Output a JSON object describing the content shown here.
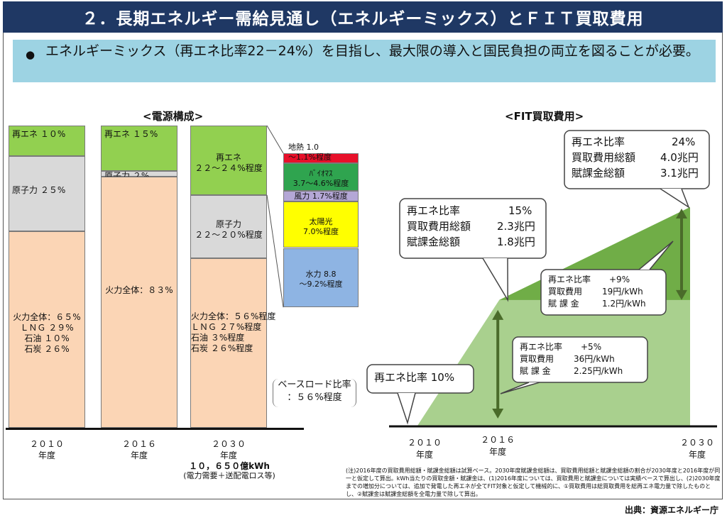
{
  "title": "２．長期エネルギー需給見通し（エネルギーミックス）とＦＩＴ買取費用",
  "banner": {
    "bullet": "●",
    "text": "エネルギーミックス（再エネ比率22－24%）を目指し、最大限の導入と国民負担の両立を図ることが必要。"
  },
  "left_section_title": "<電源構成>",
  "right_section_title": "<FIT買取費用>",
  "colors": {
    "renewable": "#92d050",
    "nuclear": "#d9d9d9",
    "thermal": "#fbd5b5",
    "geothermal": "#e8102a",
    "biomass": "#2fa44f",
    "wind": "#b4a7d6",
    "solar": "#ffff00",
    "hydro": "#8eb4e3",
    "fit_light": "#a9d08e",
    "fit_dark": "#70ad47",
    "arrow": "#4a6b2a",
    "title_bg": "#1f3864",
    "banner_bg": "#9dd3e3"
  },
  "chart_data": [
    {
      "type": "bar",
      "title": "<電源構成>",
      "categories": [
        "２０１０\n年度",
        "２０１６\n年度",
        "２０３０\n年度"
      ],
      "series": [
        {
          "name": "再エネ",
          "values": [
            10,
            15,
            23
          ]
        },
        {
          "name": "原子力",
          "values": [
            25,
            2,
            21
          ]
        },
        {
          "name": "火力全体",
          "values": [
            65,
            83,
            56
          ]
        }
      ],
      "bars": [
        {
          "year": "２０１０",
          "unit": "年度",
          "segments": [
            {
              "key": "renewable",
              "value": 10,
              "label": "再エネ １０%"
            },
            {
              "key": "nuclear",
              "value": 25,
              "label": "原子力 ２５%"
            },
            {
              "key": "thermal",
              "value": 65,
              "label": "火力全体：６５%\nＬＮＧ ２９%\n石油 １０%\n石炭 ２６%"
            }
          ]
        },
        {
          "year": "２０１６",
          "unit": "年度",
          "segments": [
            {
              "key": "renewable",
              "value": 15,
              "label": "再エネ １５%"
            },
            {
              "key": "nuclear",
              "value": 2,
              "label": "原子力 ２%"
            },
            {
              "key": "thermal",
              "value": 83,
              "label": "火力全体：８３%"
            }
          ]
        },
        {
          "year": "２０３０",
          "unit": "年度",
          "segments": [
            {
              "key": "renewable",
              "value": 23,
              "label": "再エネ\n２２～２４%程度"
            },
            {
              "key": "nuclear",
              "value": 21,
              "label": "原子力\n２２～２０%程度"
            },
            {
              "key": "thermal",
              "value": 56,
              "label": "火力全体：５６%程度\nＬＮＧ ２７%程度\n石油 ３%程度\n石炭 ２６%程度"
            }
          ]
        }
      ],
      "renewable_breakdown_2030": [
        {
          "key": "geothermal",
          "value": 1.05,
          "label": "地熱 1.0\n～1.1%程度"
        },
        {
          "key": "biomass",
          "value": 4.15,
          "label": "ﾊﾞｲｵﾏｽ\n3.7～4.6%程度"
        },
        {
          "key": "wind",
          "value": 1.7,
          "label": "風力 1.7%程度"
        },
        {
          "key": "solar",
          "value": 7.0,
          "label": "太陽光\n7.0%程度"
        },
        {
          "key": "hydro",
          "value": 9.0,
          "label": "水力 8.8\n～9.2%程度"
        }
      ],
      "demand_2030": "１０，６５０億kWh",
      "demand_note": "(電力需要＋送配電ロス等)",
      "baseload_note": "ベースロード比率\n：５６%程度"
    },
    {
      "type": "area",
      "title": "<FIT買取費用>",
      "x": [
        2010,
        2016,
        2030
      ],
      "x_labels": [
        {
          "year": 2010,
          "label": "２０１０",
          "unit": "年度"
        },
        {
          "year": 2016,
          "label": "２０１６",
          "unit": "年度"
        },
        {
          "year": 2030,
          "label": "２０３０",
          "unit": "年度"
        }
      ],
      "series": [
        {
          "name": "買取費用総額",
          "values": [
            0,
            2.3,
            4.0
          ]
        },
        {
          "name": "賦課金総額",
          "values": [
            0,
            1.8,
            3.1
          ]
        }
      ],
      "callouts": [
        {
          "id": "y2010",
          "lines": [
            "再エネ比率 10%"
          ]
        },
        {
          "id": "y2016",
          "lines": [
            "再エネ比率",
            "15%",
            "買取費用総額",
            "2.3兆円",
            "賦課金総額",
            "1.8兆円"
          ]
        },
        {
          "id": "y2030",
          "lines": [
            "再エネ比率",
            "24%",
            "買取費用総額",
            "4.0兆円",
            "賦課金総額",
            "3.1兆円"
          ]
        },
        {
          "id": "inc5",
          "lines": [
            "再エネ比率",
            "+5%",
            "買取費用",
            "36円/kWh",
            "賦 課 金",
            "2.25円/kWh"
          ]
        },
        {
          "id": "inc9",
          "lines": [
            "再エネ比率",
            "+9%",
            "買取費用",
            "19円/kWh",
            "賦 課 金",
            "1.2円/kWh"
          ]
        }
      ]
    }
  ],
  "footnote": "(注)2016年度の買取費用総額・賦課金総額は試算ベース。2030年度賦課金総額は、買取費用総額と賦課金総額の割合が2030年度と2016年度が同一と仮定して算出。kWh当たりの買取金額・賦課金は、(1)2016年度については、買取費用と賦課金については実績ベースで算出し、(2)2030年度までの増加分については、追加で発電した再エネが全てFIT対象と仮定して機械的に、①買取費用は総買取費用を総再エネ電力量で除したものとし、②賦課金は賦課金総額を全電力量で除して算出。",
  "source": "出典：資源エネルギー庁"
}
